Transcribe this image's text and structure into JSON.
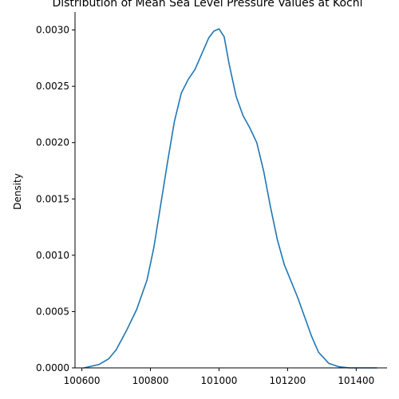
{
  "chart_data": {
    "type": "line",
    "title": "Distribution of Mean Sea Level Pressure Values at Kochi",
    "xlabel": "",
    "ylabel": "Density",
    "xlim": [
      100580,
      101490
    ],
    "ylim": [
      0,
      0.00316
    ],
    "x_ticks": [
      {
        "value": 100600,
        "label": "100600"
      },
      {
        "value": 100800,
        "label": "100800"
      },
      {
        "value": 101000,
        "label": "101000"
      },
      {
        "value": 101200,
        "label": "101200"
      },
      {
        "value": 101400,
        "label": "101400"
      }
    ],
    "y_ticks": [
      {
        "value": 0.0,
        "label": "0.0000"
      },
      {
        "value": 0.0005,
        "label": "0.0005"
      },
      {
        "value": 0.001,
        "label": "0.0010"
      },
      {
        "value": 0.0015,
        "label": "0.0015"
      },
      {
        "value": 0.002,
        "label": "0.0020"
      },
      {
        "value": 0.0025,
        "label": "0.0025"
      },
      {
        "value": 0.003,
        "label": "0.0030"
      }
    ],
    "grid": false,
    "spines": [
      "left",
      "bottom"
    ],
    "series": [
      {
        "color": "#1f77b4",
        "x": [
          100606,
          100650,
          100678,
          100700,
          100730,
          100760,
          100790,
          100810,
          100830,
          100850,
          100870,
          100890,
          100910,
          100930,
          100950,
          100970,
          100985,
          101000,
          101015,
          101030,
          101050,
          101070,
          101090,
          101110,
          101130,
          101150,
          101170,
          101190,
          101210,
          101230,
          101250,
          101270,
          101290,
          101320,
          101350,
          101380,
          101420,
          101460
        ],
        "y": [
          0.0,
          3e-05,
          8e-05,
          0.00016,
          0.00033,
          0.00052,
          0.00078,
          0.00107,
          0.00145,
          0.00183,
          0.00219,
          0.00244,
          0.00256,
          0.00265,
          0.00279,
          0.00293,
          0.00299,
          0.00301,
          0.00294,
          0.00269,
          0.00241,
          0.00224,
          0.00213,
          0.002,
          0.00175,
          0.00143,
          0.00114,
          0.00092,
          0.00077,
          0.00062,
          0.00045,
          0.00028,
          0.00014,
          4e-05,
          1e-05,
          0.0,
          0.0,
          0.0
        ]
      }
    ]
  }
}
